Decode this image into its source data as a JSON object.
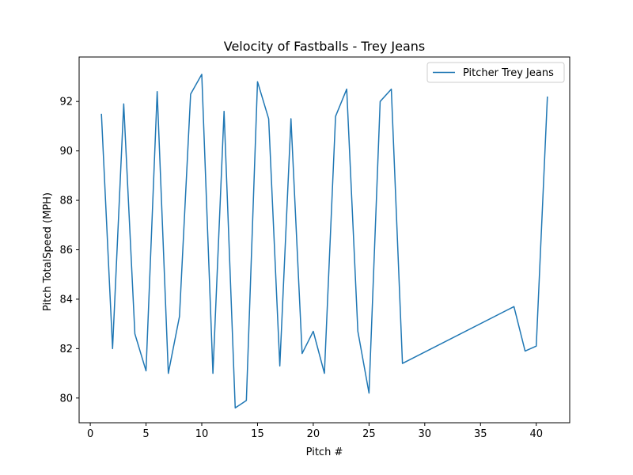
{
  "chart_data": {
    "type": "line",
    "title": "Velocity of Fastballs - Trey Jeans",
    "xlabel": "Pitch #",
    "ylabel": "Pitch TotalSpeed (MPH)",
    "xlim": [
      -1.0,
      43.0
    ],
    "ylim": [
      79.0,
      93.8
    ],
    "xticks": [
      0,
      5,
      10,
      15,
      20,
      25,
      30,
      35,
      40
    ],
    "yticks": [
      80,
      82,
      84,
      86,
      88,
      90,
      92
    ],
    "grid": false,
    "legend_position": "top-right",
    "series": [
      {
        "name": "Pitcher Trey Jeans",
        "color": "#1f77b4",
        "x": [
          1,
          2,
          3,
          4,
          5,
          6,
          7,
          8,
          9,
          10,
          11,
          12,
          13,
          14,
          15,
          16,
          17,
          18,
          19,
          20,
          21,
          22,
          23,
          24,
          25,
          26,
          27,
          28,
          38,
          39,
          40,
          41
        ],
        "values": [
          91.5,
          82.0,
          91.9,
          82.6,
          81.1,
          92.4,
          81.0,
          83.3,
          92.3,
          93.1,
          81.0,
          91.6,
          79.6,
          79.9,
          92.8,
          91.3,
          81.3,
          91.3,
          81.8,
          82.7,
          81.0,
          91.4,
          92.5,
          82.7,
          80.2,
          92.0,
          92.5,
          81.4,
          83.7,
          81.9,
          82.1,
          92.2
        ]
      }
    ]
  }
}
